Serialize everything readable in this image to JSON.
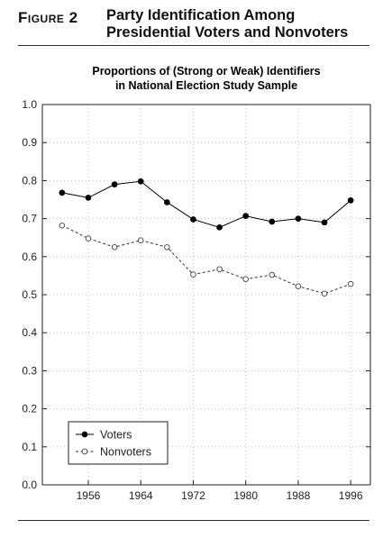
{
  "header": {
    "figure_label": "Figure 2",
    "title_line1": "Party Identification Among",
    "title_line2": "Presidential Voters and Nonvoters"
  },
  "chart_data": {
    "type": "line",
    "title": [
      "Proportions of (Strong or Weak) Identifiers",
      "in National Election Study Sample"
    ],
    "xlabel": "",
    "ylabel": "",
    "x": [
      1952,
      1956,
      1960,
      1964,
      1968,
      1972,
      1976,
      1980,
      1984,
      1988,
      1992,
      1996
    ],
    "xticks": [
      1956,
      1964,
      1972,
      1980,
      1988,
      1996
    ],
    "xlim": [
      1949,
      1999
    ],
    "ylim": [
      0.0,
      1.0
    ],
    "yticks": [
      "0.0",
      "0.1",
      "0.2",
      "0.3",
      "0.4",
      "0.5",
      "0.6",
      "0.7",
      "0.8",
      "0.9",
      "1.0"
    ],
    "grid": true,
    "legend_position": "bottom-left",
    "series": [
      {
        "name": "Voters",
        "marker": "filled-circle",
        "line": "solid",
        "color": "#000000",
        "values": [
          0.768,
          0.755,
          0.79,
          0.798,
          0.743,
          0.698,
          0.677,
          0.707,
          0.692,
          0.7,
          0.69,
          0.748
        ]
      },
      {
        "name": "Nonvoters",
        "marker": "open-circle",
        "line": "dashed",
        "color": "#333333",
        "values": [
          0.682,
          0.648,
          0.625,
          0.643,
          0.625,
          0.553,
          0.567,
          0.541,
          0.552,
          0.522,
          0.503,
          0.528
        ]
      }
    ]
  }
}
